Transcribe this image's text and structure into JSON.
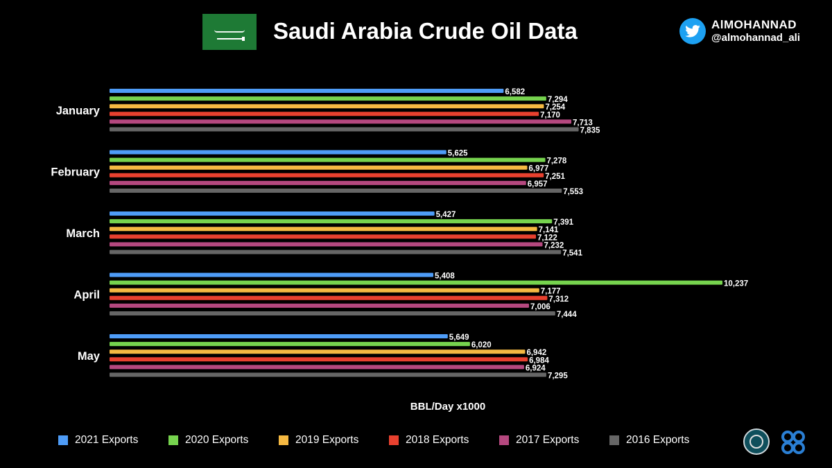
{
  "header": {
    "title": "Saudi Arabia Crude Oil Data",
    "brand_name": "AlMOHANNAD",
    "brand_handle": "@almohannad_ali"
  },
  "icons": {
    "flag": "saudi-flag-icon",
    "twitter": "twitter-bird-icon",
    "emblem": "ministry-emblem-icon",
    "opec": "opec-logo-icon"
  },
  "colors": {
    "background": "#000000",
    "text": "#ffffff",
    "series": [
      "#4e9cf7",
      "#76d34e",
      "#f5b942",
      "#e8412f",
      "#b5487f",
      "#666666"
    ]
  },
  "chart_data": {
    "type": "bar",
    "orientation": "horizontal",
    "title": "Saudi Arabia Crude Oil Data",
    "xlabel": "BBL/Day x1000",
    "ylabel": "",
    "xlim": [
      0,
      10800
    ],
    "grid": false,
    "legend_position": "bottom",
    "categories": [
      "January",
      "February",
      "March",
      "April",
      "May"
    ],
    "series": [
      {
        "name": "2021 Exports",
        "values": [
          6582,
          5625,
          5427,
          5408,
          5649
        ],
        "labels": [
          "6,582",
          "5,625",
          "5,427",
          "5,408",
          "5,649"
        ]
      },
      {
        "name": "2020 Exports",
        "values": [
          7294,
          7278,
          7391,
          10237,
          6020
        ],
        "labels": [
          "7,294",
          "7,278",
          "7,391",
          "10,237",
          "6,020"
        ]
      },
      {
        "name": "2019 Exports",
        "values": [
          7254,
          6977,
          7141,
          7177,
          6942
        ],
        "labels": [
          "7,254",
          "6,977",
          "7,141",
          "7,177",
          "6,942"
        ]
      },
      {
        "name": "2018 Exports",
        "values": [
          7170,
          7251,
          7122,
          7312,
          6984
        ],
        "labels": [
          "7,170",
          "7,251",
          "7,122",
          "7,312",
          "6,984"
        ]
      },
      {
        "name": "2017 Exports",
        "values": [
          7713,
          6957,
          7232,
          7006,
          6924
        ],
        "labels": [
          "7,713",
          "6,957",
          "7,232",
          "7,006",
          "6,924"
        ]
      },
      {
        "name": "2016 Exports",
        "values": [
          7835,
          7553,
          7541,
          7444,
          7295
        ],
        "labels": [
          "7,835",
          "7,553",
          "7,541",
          "7,444",
          "7,295"
        ]
      }
    ]
  }
}
